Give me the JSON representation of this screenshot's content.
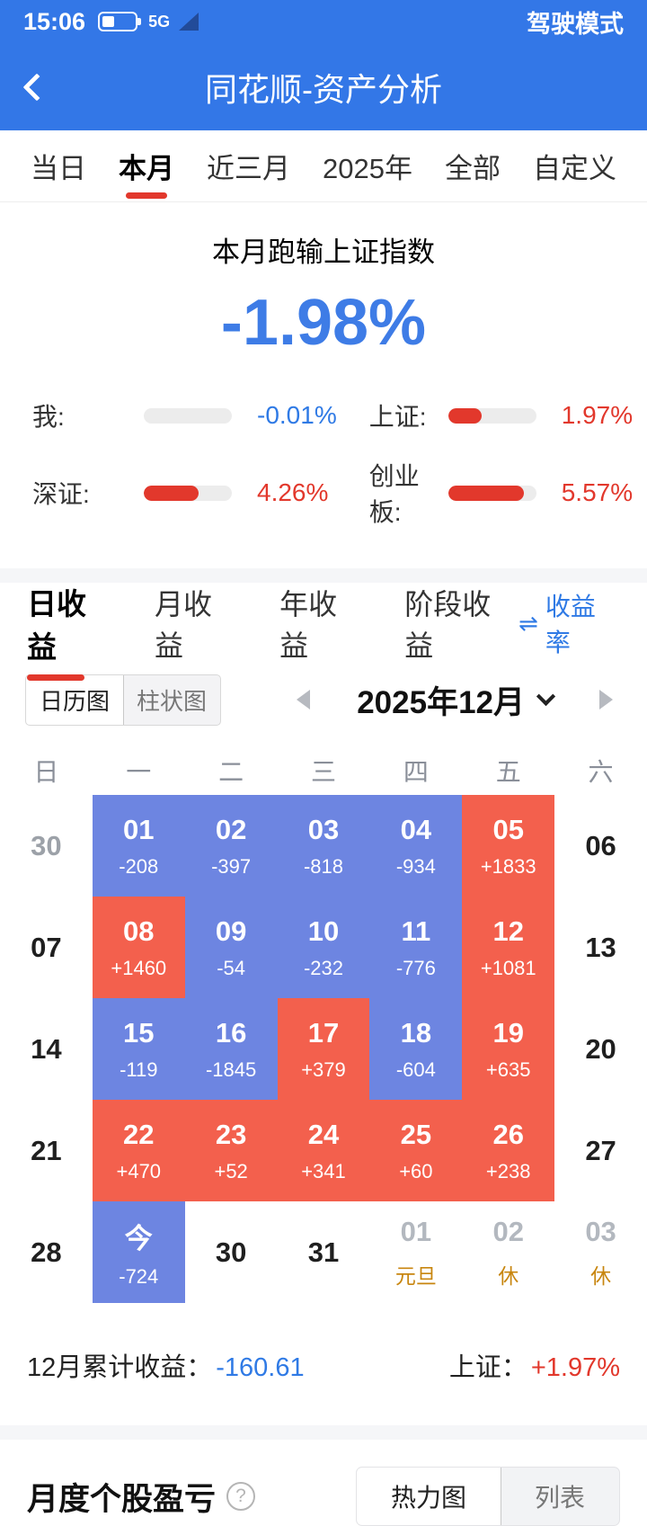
{
  "status_bar": {
    "time": "15:06",
    "network": "5G",
    "mode_label": "驾驶模式"
  },
  "header": {
    "title": "同花顺-资产分析"
  },
  "period_tabs": [
    {
      "label": "当日",
      "active": false
    },
    {
      "label": "本月",
      "active": true
    },
    {
      "label": "近三月",
      "active": false
    },
    {
      "label": "2025年",
      "active": false
    },
    {
      "label": "全部",
      "active": false
    },
    {
      "label": "自定义",
      "active": false
    }
  ],
  "summary": {
    "headline": "本月跑输上证指数",
    "main_value": "-1.98%",
    "stats": [
      {
        "label": "我:",
        "value": "-0.01%",
        "tone": "blue",
        "bar_style": "width:0%"
      },
      {
        "label": "上证:",
        "value": "1.97%",
        "tone": "red",
        "bar_style": "width:38%"
      },
      {
        "label": "深证:",
        "value": "4.26%",
        "tone": "red",
        "bar_style": "width:62%"
      },
      {
        "label": "创业板:",
        "value": "5.57%",
        "tone": "red",
        "bar_style": "width:86%"
      }
    ]
  },
  "income_tabs": [
    {
      "label": "日收益",
      "active": true
    },
    {
      "label": "月收益",
      "active": false
    },
    {
      "label": "年收益",
      "active": false
    },
    {
      "label": "阶段收益",
      "active": false
    }
  ],
  "rate_toggle": {
    "icon": "⇌",
    "label": "收益率"
  },
  "calendar": {
    "view_toggle": [
      {
        "label": "日历图",
        "active": true
      },
      {
        "label": "柱状图",
        "active": false
      }
    ],
    "month_label": "2025年12月",
    "weekdays": [
      "日",
      "一",
      "二",
      "三",
      "四",
      "五",
      "六"
    ],
    "cells": [
      {
        "day": "30",
        "type": "adjacent"
      },
      {
        "day": "01",
        "value": "-208",
        "type": "loss"
      },
      {
        "day": "02",
        "value": "-397",
        "type": "loss"
      },
      {
        "day": "03",
        "value": "-818",
        "type": "loss"
      },
      {
        "day": "04",
        "value": "-934",
        "type": "loss"
      },
      {
        "day": "05",
        "value": "+1833",
        "type": "gain"
      },
      {
        "day": "06",
        "type": "plain"
      },
      {
        "day": "07",
        "type": "plain"
      },
      {
        "day": "08",
        "value": "+1460",
        "type": "gain"
      },
      {
        "day": "09",
        "value": "-54",
        "type": "loss"
      },
      {
        "day": "10",
        "value": "-232",
        "type": "loss"
      },
      {
        "day": "11",
        "value": "-776",
        "type": "loss"
      },
      {
        "day": "12",
        "value": "+1081",
        "type": "gain"
      },
      {
        "day": "13",
        "type": "plain"
      },
      {
        "day": "14",
        "type": "plain"
      },
      {
        "day": "15",
        "value": "-119",
        "type": "loss"
      },
      {
        "day": "16",
        "value": "-1845",
        "type": "loss"
      },
      {
        "day": "17",
        "value": "+379",
        "type": "gain"
      },
      {
        "day": "18",
        "value": "-604",
        "type": "loss"
      },
      {
        "day": "19",
        "value": "+635",
        "type": "gain"
      },
      {
        "day": "20",
        "type": "plain"
      },
      {
        "day": "21",
        "type": "plain"
      },
      {
        "day": "22",
        "value": "+470",
        "type": "gain"
      },
      {
        "day": "23",
        "value": "+52",
        "type": "gain"
      },
      {
        "day": "24",
        "value": "+341",
        "type": "gain"
      },
      {
        "day": "25",
        "value": "+60",
        "type": "gain"
      },
      {
        "day": "26",
        "value": "+238",
        "type": "gain"
      },
      {
        "day": "27",
        "type": "plain"
      },
      {
        "day": "28",
        "type": "plain"
      },
      {
        "day": "今",
        "value": "-724",
        "type": "loss"
      },
      {
        "day": "30",
        "type": "plain"
      },
      {
        "day": "31",
        "type": "plain"
      },
      {
        "day": "01",
        "note": "元旦",
        "type": "holiday"
      },
      {
        "day": "02",
        "note": "休",
        "type": "holiday"
      },
      {
        "day": "03",
        "note": "休",
        "type": "holiday"
      }
    ],
    "summary": {
      "total_label": "12月累计收益：",
      "total_value": "-160.61",
      "index_label": "上证：",
      "index_value": "+1.97%"
    }
  },
  "monthly_stocks": {
    "title": "月度个股盈亏",
    "help_icon": "?",
    "view_toggle": [
      {
        "label": "热力图",
        "active": true
      },
      {
        "label": "列表",
        "active": false
      }
    ]
  }
}
